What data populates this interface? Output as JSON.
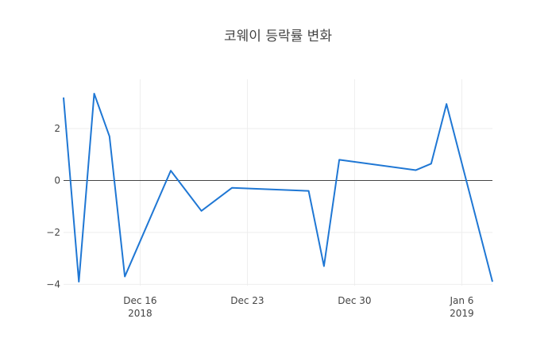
{
  "chart_data": {
    "type": "line",
    "title": "코웨이 등락률 변화",
    "xlabel": "",
    "ylabel": "",
    "ylim": [
      -4.05,
      3.9
    ],
    "grid": true,
    "legend": "none",
    "series": [
      {
        "color": "#1f77d4",
        "points": [
          {
            "x": "2018-12-11",
            "y": 3.2
          },
          {
            "x": "2018-12-12",
            "y": -3.9
          },
          {
            "x": "2018-12-13",
            "y": 3.35
          },
          {
            "x": "2018-12-14",
            "y": 1.7
          },
          {
            "x": "2018-12-15",
            "y": -3.7
          },
          {
            "x": "2018-12-18",
            "y": 0.38
          },
          {
            "x": "2018-12-20",
            "y": -1.17
          },
          {
            "x": "2018-12-22",
            "y": -0.28
          },
          {
            "x": "2018-12-27",
            "y": -0.4
          },
          {
            "x": "2018-12-28",
            "y": -3.3
          },
          {
            "x": "2018-12-29",
            "y": 0.8
          },
          {
            "x": "2019-01-03",
            "y": 0.4
          },
          {
            "x": "2019-01-04",
            "y": 0.65
          },
          {
            "x": "2019-01-05",
            "y": 2.95
          },
          {
            "x": "2019-01-08",
            "y": -3.9
          }
        ]
      }
    ],
    "x_ticks": [
      {
        "date": "2018-12-16",
        "label": "Dec 16",
        "sublabel": "2018"
      },
      {
        "date": "2018-12-23",
        "label": "Dec 23",
        "sublabel": ""
      },
      {
        "date": "2018-12-30",
        "label": "Dec 30",
        "sublabel": ""
      },
      {
        "date": "2019-01-06",
        "label": "Jan 6",
        "sublabel": "2019"
      }
    ],
    "y_ticks": [
      2,
      0,
      -2,
      -4
    ],
    "x_range": [
      "2018-12-11",
      "2019-01-08"
    ]
  }
}
